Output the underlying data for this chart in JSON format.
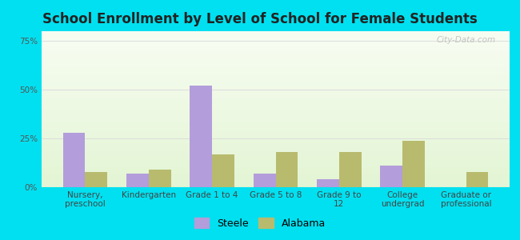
{
  "title": "School Enrollment by Level of School for Female Students",
  "categories": [
    "Nursery,\npreschool",
    "Kindergarten",
    "Grade 1 to 4",
    "Grade 5 to 8",
    "Grade 9 to\n12",
    "College\nundergrad",
    "Graduate or\nprofessional"
  ],
  "steele": [
    28,
    7,
    52,
    7,
    4,
    11,
    0
  ],
  "alabama": [
    8,
    9,
    17,
    18,
    18,
    24,
    8
  ],
  "steele_color": "#b39ddb",
  "alabama_color": "#b8bb6e",
  "bar_width": 0.35,
  "ylim": [
    0,
    80
  ],
  "yticks": [
    0,
    25,
    50,
    75
  ],
  "ytick_labels": [
    "0%",
    "25%",
    "50%",
    "75%"
  ],
  "background_outer": "#00e0f0",
  "grid_color": "#dddddd",
  "title_fontsize": 12,
  "tick_fontsize": 7.5,
  "legend_fontsize": 9,
  "watermark": "City-Data.com"
}
